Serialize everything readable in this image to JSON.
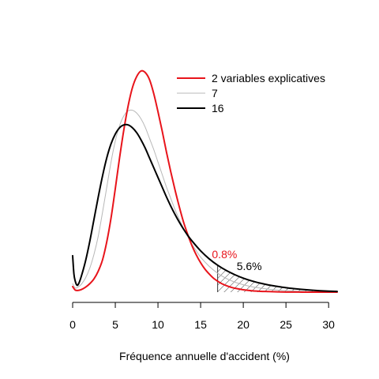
{
  "chart_data": {
    "type": "line",
    "xlabel": "Fréquence annuelle d'accident (%)",
    "ylabel": "",
    "title": "",
    "xlim": [
      0,
      31
    ],
    "x_ticks": [
      0,
      5,
      10,
      15,
      20,
      25,
      30
    ],
    "grid": false,
    "legend_position": "top-right",
    "series": [
      {
        "name": "2 variables explicatives",
        "color": "#e8141b",
        "x": [
          0,
          0.3,
          0.6,
          1,
          1.5,
          2,
          2.5,
          3,
          3.5,
          4,
          4.5,
          5,
          5.5,
          6,
          6.5,
          7,
          7.5,
          8,
          8.5,
          9,
          9.5,
          10,
          10.5,
          11,
          11.5,
          12,
          12.5,
          13,
          13.5,
          14,
          14.5,
          15,
          15.5,
          16,
          16.5,
          17,
          17.5,
          18,
          18.5,
          19,
          20,
          21,
          22,
          23,
          24,
          25,
          26,
          27,
          28,
          29,
          30,
          31
        ],
        "y": [
          0.4,
          0.15,
          0.12,
          0.18,
          0.35,
          0.6,
          0.95,
          1.5,
          2.3,
          3.6,
          5.3,
          7.4,
          9.6,
          11.6,
          13.3,
          14.6,
          15.4,
          15.8,
          15.7,
          15.2,
          14.2,
          12.9,
          11.5,
          10.0,
          8.6,
          7.3,
          6.1,
          5.0,
          4.1,
          3.3,
          2.65,
          2.1,
          1.65,
          1.3,
          1.0,
          0.78,
          0.6,
          0.47,
          0.36,
          0.28,
          0.17,
          0.1,
          0.06,
          0.04,
          0.02,
          0.01,
          0.01,
          0,
          0,
          0,
          0,
          0
        ]
      },
      {
        "name": "7",
        "color": "#b8b8b8",
        "x": [
          0,
          0.3,
          0.6,
          1,
          1.5,
          2,
          2.5,
          3,
          3.5,
          4,
          4.5,
          5,
          5.5,
          6,
          6.5,
          7,
          7.5,
          8,
          8.5,
          9,
          9.5,
          10,
          10.5,
          11,
          11.5,
          12,
          12.5,
          13,
          13.5,
          14,
          14.5,
          15,
          16,
          17,
          18,
          19,
          20,
          21,
          22,
          23,
          24,
          25,
          26,
          27,
          28,
          29,
          30,
          31
        ],
        "y": [
          0.6,
          0.3,
          0.35,
          0.55,
          1.0,
          1.7,
          2.7,
          4.0,
          5.7,
          7.5,
          9.3,
          10.8,
          11.9,
          12.6,
          12.95,
          13.0,
          12.8,
          12.4,
          11.8,
          11.0,
          10.2,
          9.3,
          8.4,
          7.5,
          6.7,
          5.9,
          5.2,
          4.55,
          3.95,
          3.4,
          2.95,
          2.5,
          1.85,
          1.35,
          0.98,
          0.72,
          0.53,
          0.39,
          0.29,
          0.21,
          0.15,
          0.11,
          0.08,
          0.06,
          0.04,
          0.03,
          0.02,
          0.01
        ]
      },
      {
        "name": "16",
        "color": "#000000",
        "x": [
          0,
          0.15,
          0.3,
          0.5,
          0.7,
          1,
          1.5,
          2,
          2.5,
          3,
          3.5,
          4,
          4.5,
          5,
          5.5,
          6,
          6.5,
          7,
          7.5,
          8,
          8.5,
          9,
          9.5,
          10,
          10.5,
          11,
          11.5,
          12,
          12.5,
          13,
          13.5,
          14,
          15,
          16,
          17,
          18,
          19,
          20,
          21,
          22,
          23,
          24,
          25,
          26,
          27,
          28,
          29,
          30,
          31
        ],
        "y": [
          2.6,
          1.3,
          0.8,
          0.5,
          0.6,
          1.1,
          2.2,
          3.6,
          5.2,
          6.8,
          8.3,
          9.6,
          10.6,
          11.3,
          11.75,
          11.95,
          11.95,
          11.75,
          11.4,
          10.9,
          10.3,
          9.6,
          8.9,
          8.2,
          7.5,
          6.8,
          6.15,
          5.55,
          5.0,
          4.5,
          4.05,
          3.65,
          2.95,
          2.38,
          1.92,
          1.55,
          1.25,
          1.0,
          0.8,
          0.64,
          0.51,
          0.41,
          0.32,
          0.25,
          0.19,
          0.14,
          0.1,
          0.07,
          0.05
        ]
      }
    ],
    "annotations": [
      {
        "text": "0.8%",
        "color": "#e8141b",
        "x": 17.8,
        "y": 2.1
      },
      {
        "text": "5.6%",
        "color": "#000000",
        "x": 20.7,
        "y": 1.25
      }
    ],
    "shaded_region_from_x": 17
  }
}
